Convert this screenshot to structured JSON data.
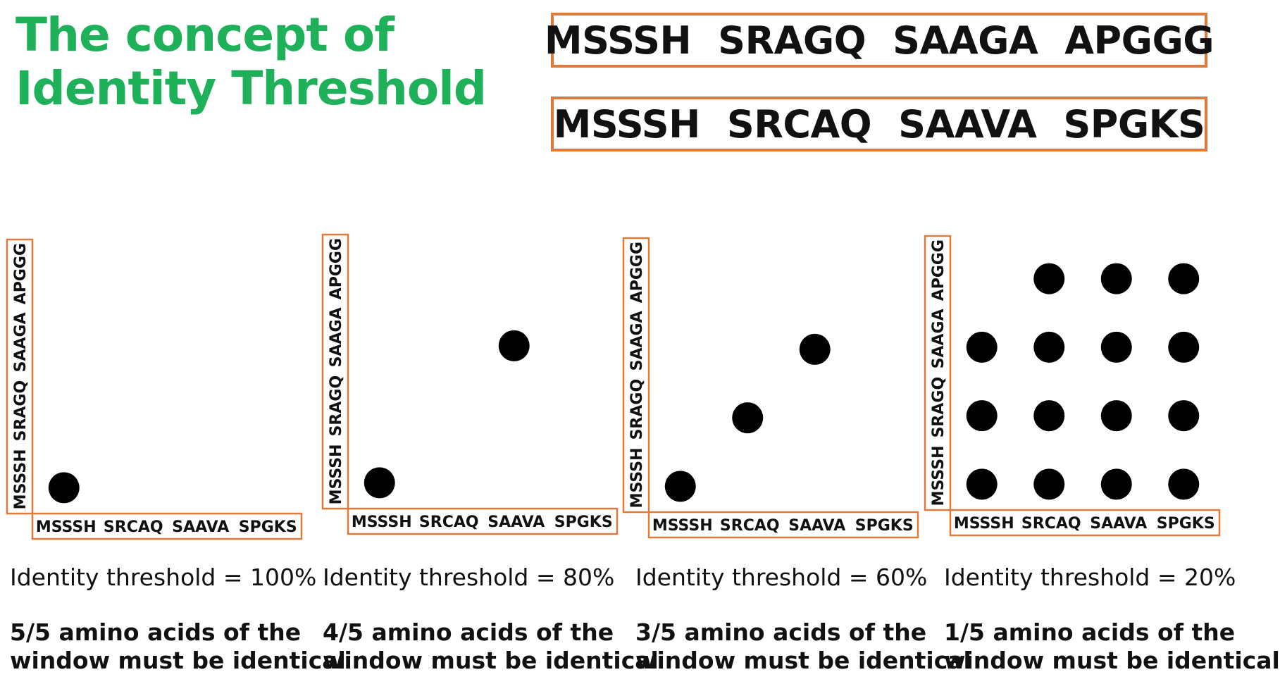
{
  "title": {
    "line1": "The concept of",
    "line2": "Identity Threshold"
  },
  "sequences": [
    {
      "segments": [
        "MSSSH",
        "SRAGQ",
        "SAAGA",
        "APGGG"
      ]
    },
    {
      "segments": [
        "MSSSH",
        "SRCAQ",
        "SAAVA",
        "SPGKS"
      ]
    }
  ],
  "axis_labels": {
    "x": [
      "MSSSH",
      "SRCAQ",
      "SAAVA",
      "SPGKS"
    ],
    "y": [
      "MSSSH",
      "SRAGQ",
      "SAAGA",
      "APGGG"
    ]
  },
  "panels": [
    {
      "threshold_text": "Identity threshold = 100%",
      "desc_line1": "5/5 amino acids of the",
      "desc_line2": "window must be identical",
      "dots": [
        [
          0,
          0
        ]
      ]
    },
    {
      "threshold_text": "Identity threshold = 80%",
      "desc_line1": "4/5 amino acids of the",
      "desc_line2": "window must be identical",
      "dots": [
        [
          0,
          0
        ],
        [
          2,
          2
        ]
      ]
    },
    {
      "threshold_text": "Identity threshold = 60%",
      "desc_line1": "3/5 amino acids of the",
      "desc_line2": "window must be identical",
      "dots": [
        [
          0,
          0
        ],
        [
          1,
          1
        ],
        [
          2,
          2
        ]
      ]
    },
    {
      "threshold_text": "Identity threshold = 20%",
      "desc_line1": "1/5 amino acids of the",
      "desc_line2": "window must be identical",
      "dots": [
        [
          0,
          0
        ],
        [
          1,
          0
        ],
        [
          2,
          0
        ],
        [
          3,
          0
        ],
        [
          0,
          1
        ],
        [
          1,
          1
        ],
        [
          2,
          1
        ],
        [
          3,
          1
        ],
        [
          0,
          2
        ],
        [
          1,
          2
        ],
        [
          2,
          2
        ],
        [
          3,
          2
        ],
        [
          1,
          3
        ],
        [
          2,
          3
        ],
        [
          3,
          3
        ]
      ]
    }
  ],
  "colors": {
    "title": "#1fb15a",
    "box_border": "#e07a3c",
    "dot": "#000000",
    "text": "#111111"
  }
}
